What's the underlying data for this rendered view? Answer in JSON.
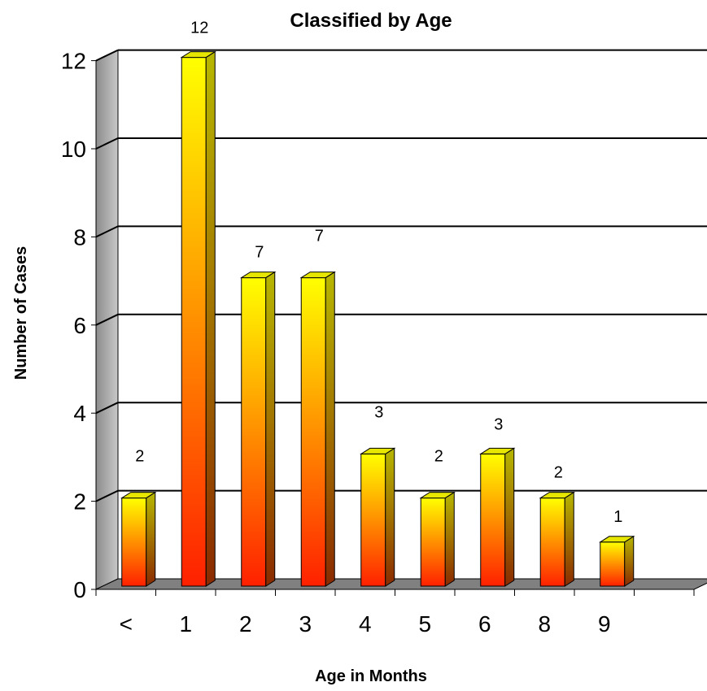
{
  "chart_data": {
    "type": "bar",
    "title": "Classified by Age",
    "xlabel": "Age in Months",
    "ylabel": "Number of Cases",
    "categories": [
      "<",
      "1",
      "2",
      "3",
      "4",
      "5",
      "6",
      "8",
      "9"
    ],
    "values": [
      2,
      12,
      7,
      7,
      3,
      2,
      3,
      2,
      1
    ],
    "data_labels": [
      "2",
      "12",
      "7",
      "7",
      "3",
      "2",
      "3",
      "2",
      "1"
    ],
    "ylim": [
      0,
      12
    ],
    "yticks": [
      "0",
      "2",
      "4",
      "6",
      "8",
      "10",
      "12"
    ],
    "grid": true,
    "legend": "none",
    "style": "3d-column",
    "colors": {
      "bar_top": "#ffff00",
      "bar_bottom": "#ff2000",
      "bar_side": "#b7b700",
      "wall": "#a6a6a6",
      "floor": "#808080",
      "gridline": "#000000"
    }
  }
}
